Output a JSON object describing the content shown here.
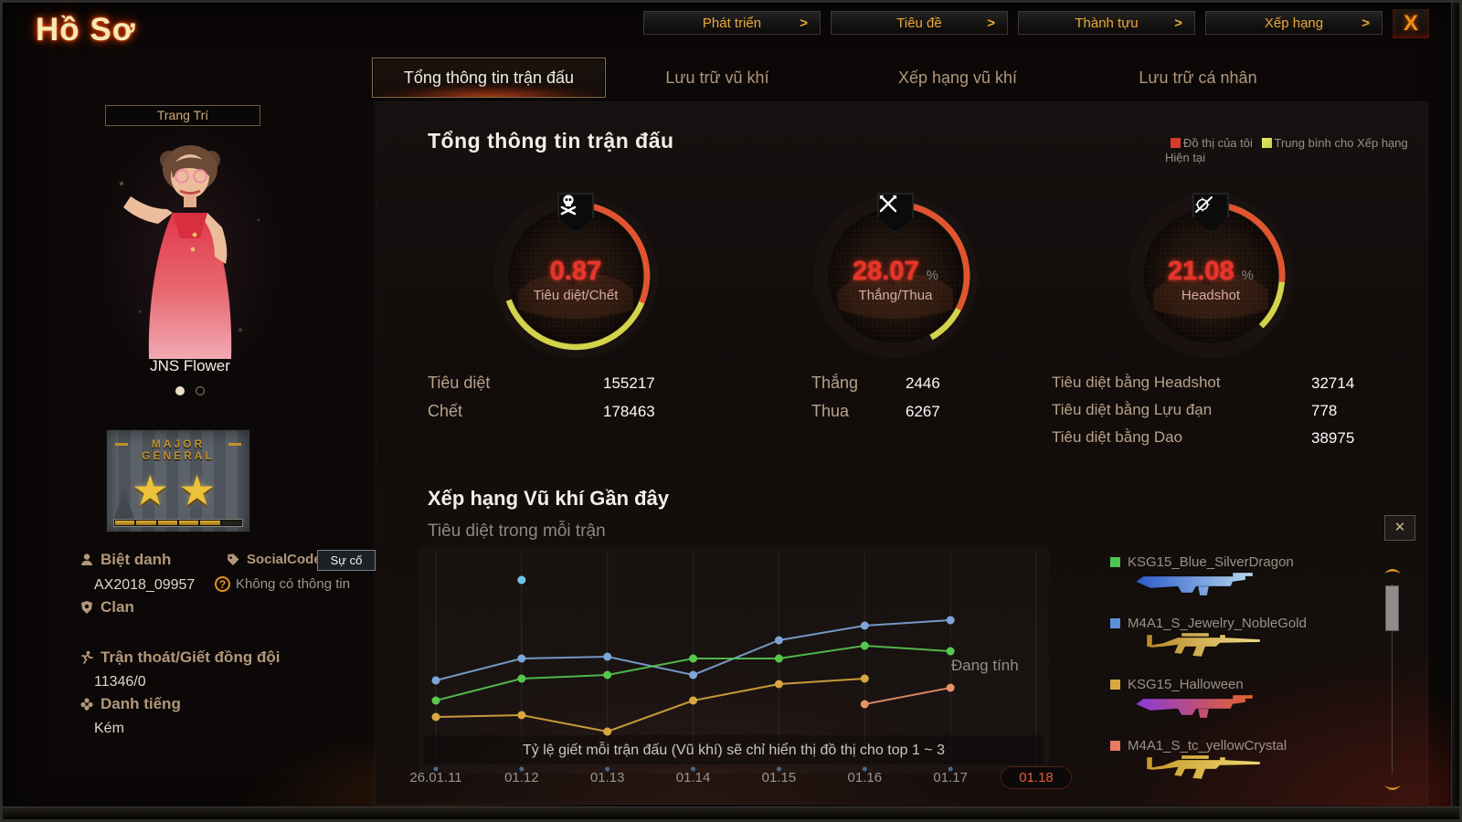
{
  "window": {
    "title": "Hồ Sơ",
    "close_label": "X"
  },
  "top_menu": {
    "arrow": ">",
    "items": [
      {
        "label": "Phát triển"
      },
      {
        "label": "Tiêu đề"
      },
      {
        "label": "Thành tựu"
      },
      {
        "label": "Xếp hạng"
      }
    ]
  },
  "tabs": [
    {
      "label": "Tổng thông tin trận đấu",
      "active": true
    },
    {
      "label": "Lưu trữ vũ khí",
      "active": false
    },
    {
      "label": "Xếp hạng vũ khí",
      "active": false
    },
    {
      "label": "Lưu trữ cá nhân",
      "active": false
    }
  ],
  "sidebar": {
    "decorate_button": "Trang Trí",
    "character_name": "JNS Flower",
    "carousel_dots": 2,
    "rank_badge": {
      "title_line1": "MAJOR",
      "title_line2": "GENERAL",
      "stars": "★★",
      "progress_total": 6,
      "progress_filled": 5
    },
    "nickname": {
      "label": "Biệt danh",
      "value": "AX2018_09957"
    },
    "social": {
      "label": "SocialCode",
      "button": "Sự cố",
      "info": "Không có thông tin"
    },
    "clan": {
      "label": "Clan"
    },
    "quit": {
      "label": "Trận thoát/Giết đồng đội",
      "value": "11346/0"
    },
    "reputation": {
      "label": "Danh tiếng",
      "value": "Kém"
    }
  },
  "main": {
    "heading": "Tổng thông tin trận đấu",
    "legend": [
      {
        "label": "Đồ thị của tôi",
        "color": "#d93a2b"
      },
      {
        "label": "Trung bình cho Xếp hạng Hiện tại",
        "color": "#c2d24a"
      }
    ],
    "gauges": [
      {
        "icon": "skull-icon",
        "value": "0.87",
        "unit": "",
        "label": "Tiêu diệt/Chết",
        "yellow_deg": 250,
        "red_deg": 112
      },
      {
        "icon": "crossed-rifles-icon",
        "value": "28.07",
        "unit": "%",
        "label": "Thắng/Thua",
        "yellow_deg": 150,
        "red_deg": 118
      },
      {
        "icon": "scoped-rifle-icon",
        "value": "21.08",
        "unit": "%",
        "label": "Headshot",
        "yellow_deg": 135,
        "red_deg": 95
      }
    ],
    "stats_columns": [
      [
        {
          "label": "Tiêu diệt",
          "value": "155217"
        },
        {
          "label": "Chết",
          "value": "178463"
        }
      ],
      [
        {
          "label": "Thắng",
          "value": "2446"
        },
        {
          "label": "Thua",
          "value": "6267"
        }
      ],
      [
        {
          "label": "Tiêu diệt bằng Headshot",
          "value": "32714"
        },
        {
          "label": "Tiêu diệt bằng Lựu đạn",
          "value": "778"
        },
        {
          "label": "Tiêu diệt bằng Dao",
          "value": "38975"
        }
      ]
    ]
  },
  "weapon_section": {
    "heading": "Xếp hạng Vũ khí Gần đây",
    "subtitle": "Tiêu diệt trong mỗi trận",
    "close_label": "✕",
    "weapons": [
      {
        "name": "KSG15_Blue_SilverDragon",
        "legend_color": "#4fc44f",
        "gun": "ksg",
        "gun_colors": [
          "#2a5ac8",
          "#b8d8f0"
        ]
      },
      {
        "name": "M4A1_S_Jewelry_NobleGold",
        "legend_color": "#5b8fd8",
        "gun": "m4",
        "gun_colors": [
          "#b8882a",
          "#f0dc8a"
        ]
      },
      {
        "name": "KSG15_Halloween",
        "legend_color": "#d8a83f",
        "gun": "ksg",
        "gun_colors": [
          "#8a3ad8",
          "#e8622a"
        ]
      },
      {
        "name": "M4A1_S_tc_yellowCrystal",
        "legend_color": "#e87a62",
        "gun": "m4",
        "gun_colors": [
          "#c8992a",
          "#f0d870"
        ]
      }
    ]
  },
  "chart_data": {
    "type": "line",
    "x_labels": [
      "26.01.11",
      "01.12",
      "01.13",
      "01.14",
      "01.15",
      "01.16",
      "01.17",
      "01.18"
    ],
    "highlight_index": 7,
    "note": "Tỷ lệ giết mỗi trận đấu (Vũ khí) sẽ chỉ hiển thị đồ thị cho top 1 ~ 3",
    "calculating_label": "Đang tính",
    "value_units": "relative kills-per-match (no numeric axis shown), 0-100 estimate",
    "grid": "vertical-only",
    "series": [
      {
        "name": "M4A1_S_Jewelry_NobleGold",
        "color": "#7ea6d8",
        "points": [
          [
            0,
            37
          ],
          [
            1,
            49
          ],
          [
            2,
            50
          ],
          [
            3,
            40
          ],
          [
            4,
            59
          ],
          [
            5,
            67
          ],
          [
            6,
            70
          ]
        ]
      },
      {
        "name": "KSG15_Blue_SilverDragon",
        "color": "#57c84f",
        "points": [
          [
            0,
            26
          ],
          [
            1,
            38
          ],
          [
            2,
            40
          ],
          [
            3,
            49
          ],
          [
            4,
            49
          ],
          [
            5,
            56
          ],
          [
            6,
            53
          ]
        ]
      },
      {
        "name": "KSG15_Halloween",
        "color": "#d8a83f",
        "points": [
          [
            0,
            17
          ],
          [
            1,
            18
          ],
          [
            2,
            9
          ],
          [
            3,
            26
          ],
          [
            4,
            35
          ],
          [
            5,
            38
          ]
        ]
      },
      {
        "name": "M4A1_S_tc_yellowCrystal",
        "color": "#e8926a",
        "points": [
          [
            5,
            24
          ],
          [
            6,
            33
          ]
        ]
      },
      {
        "name": "outlier-point",
        "color": "#6ec6e8",
        "points": [
          [
            1,
            92
          ]
        ]
      }
    ]
  }
}
